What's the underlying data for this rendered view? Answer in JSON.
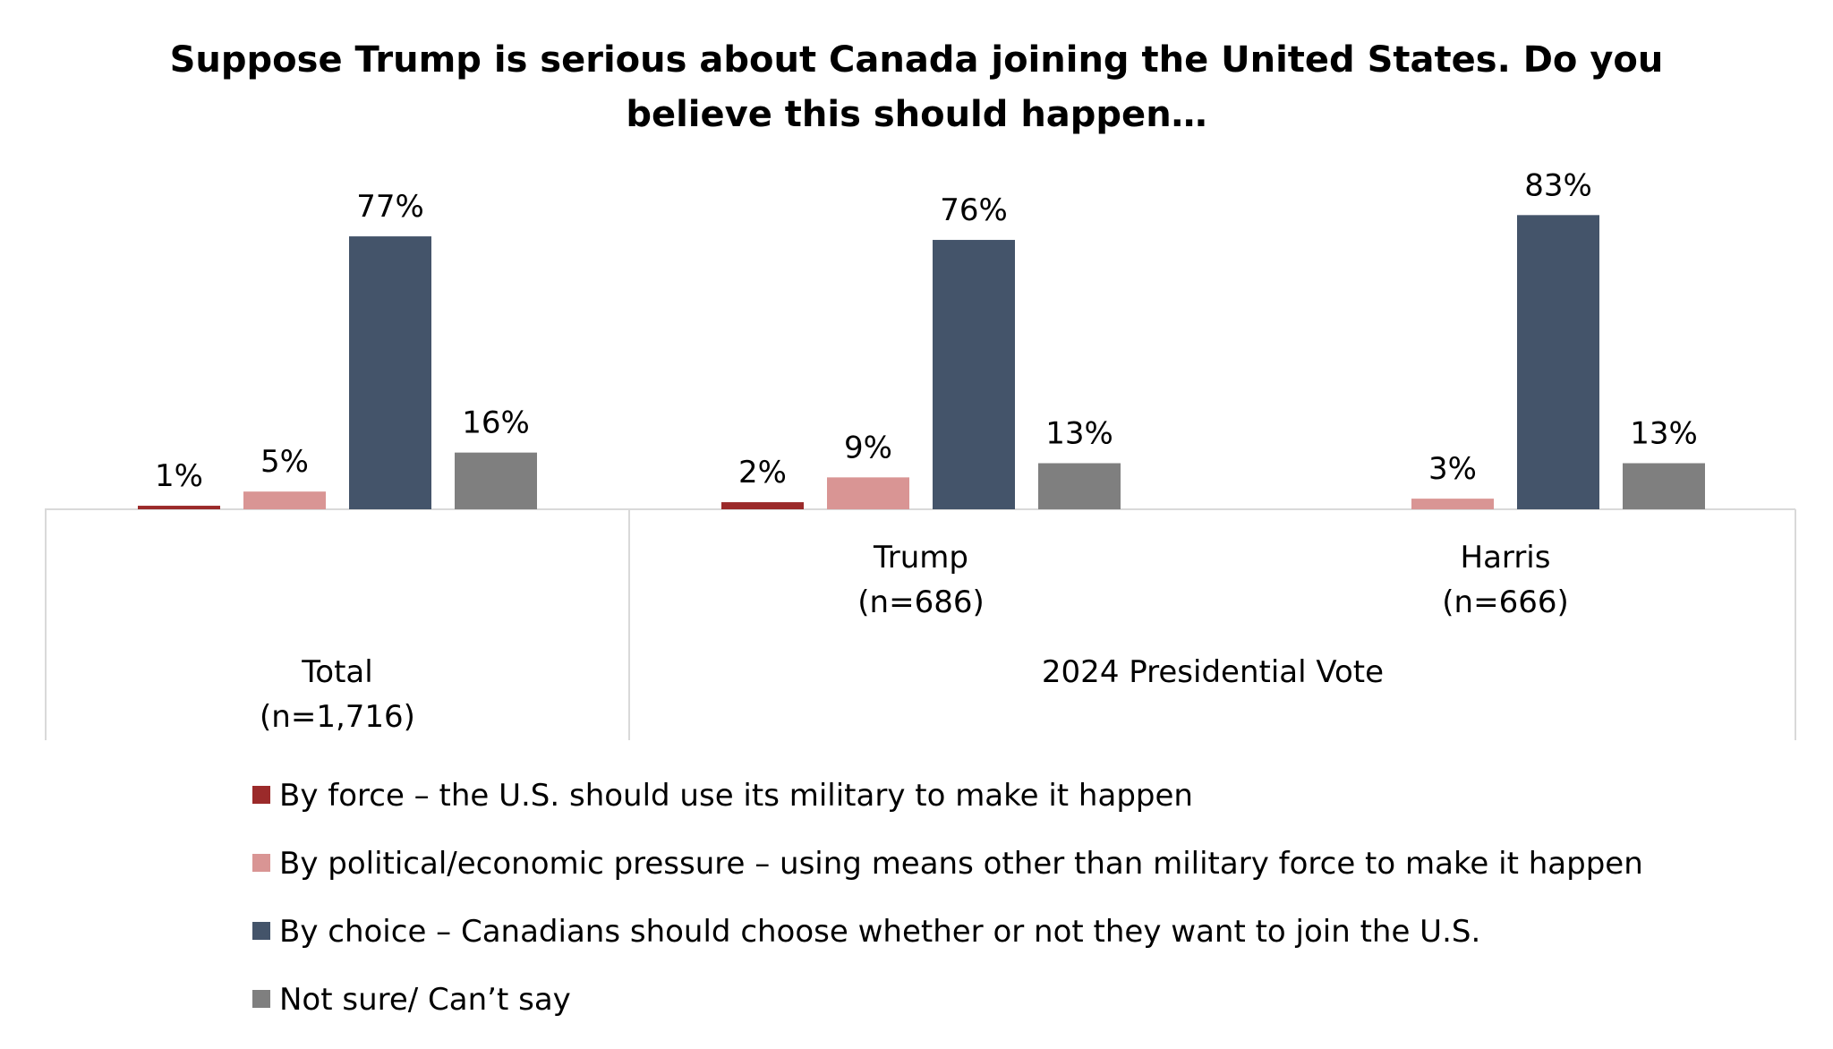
{
  "chart_data": {
    "type": "bar",
    "title_lines": [
      "Suppose Trump is serious about Canada joining the United States. Do you",
      "believe this should happen…"
    ],
    "categories": [
      {
        "label": "Total",
        "sub": "(n=1,716)"
      },
      {
        "label": "Trump",
        "sub": "(n=686)"
      },
      {
        "label": "Harris",
        "sub": "(n=666)"
      }
    ],
    "group_label": "2024 Presidential Vote",
    "series": [
      {
        "name": "By force – the U.S. should use its military to make it happen",
        "color": "#9b2a2a",
        "values": [
          1,
          2,
          null
        ]
      },
      {
        "name": "By political/economic pressure – using means other than military force to make it happen",
        "color": "#d99594",
        "values": [
          5,
          9,
          3
        ]
      },
      {
        "name": "By choice – Canadians should choose whether or not they want to join the U.S.",
        "color": "#44546a",
        "values": [
          77,
          76,
          83
        ]
      },
      {
        "name": "Not sure/ Can’t say",
        "color": "#7f7f7f",
        "values": [
          16,
          13,
          13
        ]
      }
    ],
    "value_format": "percent",
    "ylim": [
      0,
      100
    ],
    "grid": false,
    "legend_position": "bottom"
  }
}
